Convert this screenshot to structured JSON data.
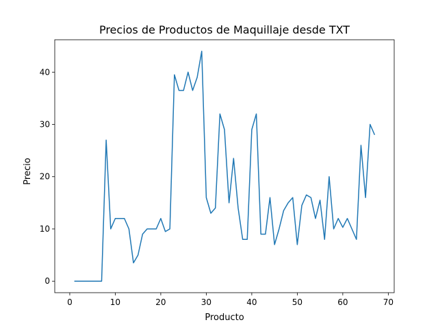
{
  "chart_data": {
    "type": "line",
    "title": "Precios de Productos de Maquillaje desde TXT",
    "xlabel": "Producto",
    "ylabel": "Precio",
    "xlim": [
      -3.3,
      71.3
    ],
    "ylim": [
      -2.2,
      46.2
    ],
    "xticks": [
      0,
      10,
      20,
      30,
      40,
      50,
      60,
      70
    ],
    "yticks": [
      0,
      10,
      20,
      30,
      40
    ],
    "grid": false,
    "series": [
      {
        "color": "#1f77b4",
        "x": [
          1,
          2,
          3,
          4,
          5,
          6,
          7,
          8,
          9,
          10,
          11,
          12,
          13,
          14,
          15,
          16,
          17,
          18,
          19,
          20,
          21,
          22,
          23,
          24,
          25,
          26,
          27,
          28,
          29,
          30,
          31,
          32,
          33,
          34,
          35,
          36,
          37,
          38,
          39,
          40,
          41,
          42,
          43,
          44,
          45,
          46,
          47,
          48,
          49,
          50,
          51,
          52,
          53,
          54,
          55,
          56,
          57,
          58,
          59,
          60,
          61,
          62,
          63,
          64,
          65,
          66,
          67
        ],
        "values": [
          0,
          0,
          0,
          0,
          0,
          0,
          0,
          27,
          10,
          12,
          12,
          12,
          10,
          3.5,
          5,
          9,
          10,
          10,
          10,
          12,
          9.5,
          10,
          39.5,
          36.5,
          36.5,
          40,
          36.5,
          39,
          44,
          16,
          13,
          14,
          32,
          29,
          15,
          23.5,
          14,
          8,
          8,
          29,
          32,
          9,
          9,
          16,
          7,
          10,
          13.5,
          15,
          16,
          7,
          14.5,
          16.5,
          16,
          12,
          15.5,
          8,
          20,
          10,
          12,
          10.3,
          12,
          10,
          8,
          26,
          16,
          30,
          28
        ]
      }
    ]
  }
}
